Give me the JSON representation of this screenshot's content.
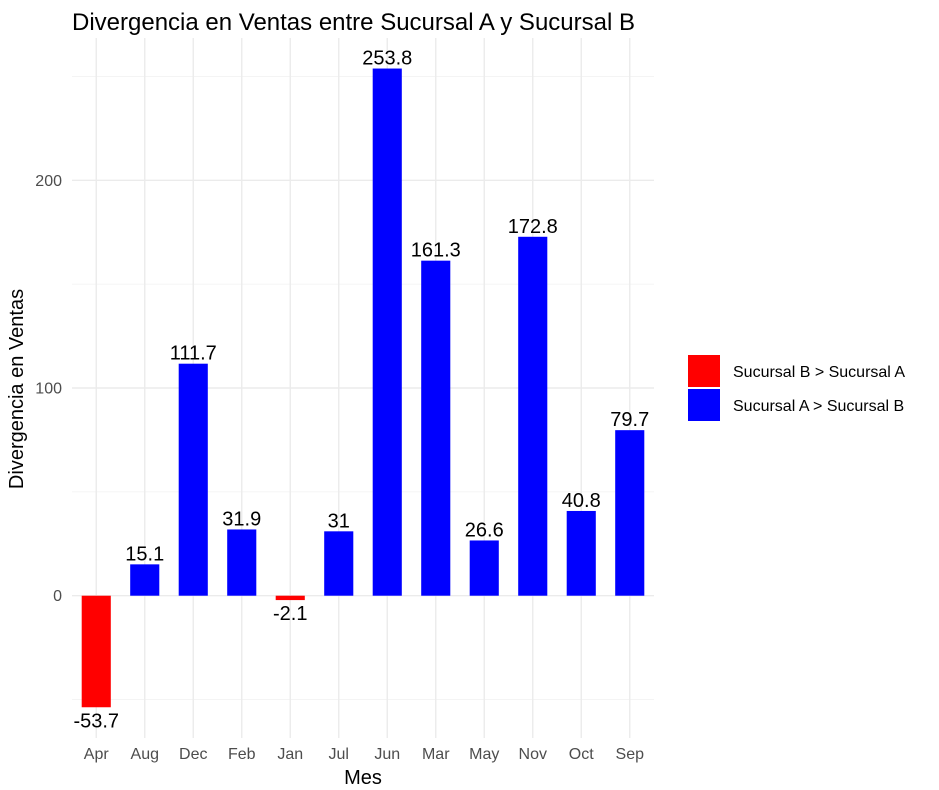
{
  "chart_data": {
    "type": "bar",
    "title": "Divergencia en Ventas entre Sucursal A y Sucursal B",
    "xlabel": "Mes",
    "ylabel": "Divergencia en Ventas",
    "categories": [
      "Apr",
      "Aug",
      "Dec",
      "Feb",
      "Jan",
      "Jul",
      "Jun",
      "Mar",
      "May",
      "Nov",
      "Oct",
      "Sep"
    ],
    "values": [
      -53.7,
      15.1,
      111.7,
      31.9,
      -2.1,
      31,
      253.8,
      161.3,
      26.6,
      172.8,
      40.8,
      79.7
    ],
    "value_labels": [
      "-53.7",
      "15.1",
      "111.7",
      "31.9",
      "-2.1",
      "31",
      "253.8",
      "161.3",
      "26.6",
      "172.8",
      "40.8",
      "79.7"
    ],
    "ylim": [
      -68.5,
      268.5
    ],
    "yticks": [
      0,
      100,
      200
    ],
    "ytick_labels": [
      "0",
      "100",
      "200"
    ],
    "grid": true,
    "legend": {
      "placement": "right",
      "entries": [
        {
          "label": "Sucursal B > Sucursal A",
          "color": "#FF0000"
        },
        {
          "label": "Sucursal A > Sucursal B",
          "color": "#0000FF"
        }
      ]
    },
    "colors": {
      "negative": "#FF0000",
      "positive": "#0000FF"
    }
  }
}
